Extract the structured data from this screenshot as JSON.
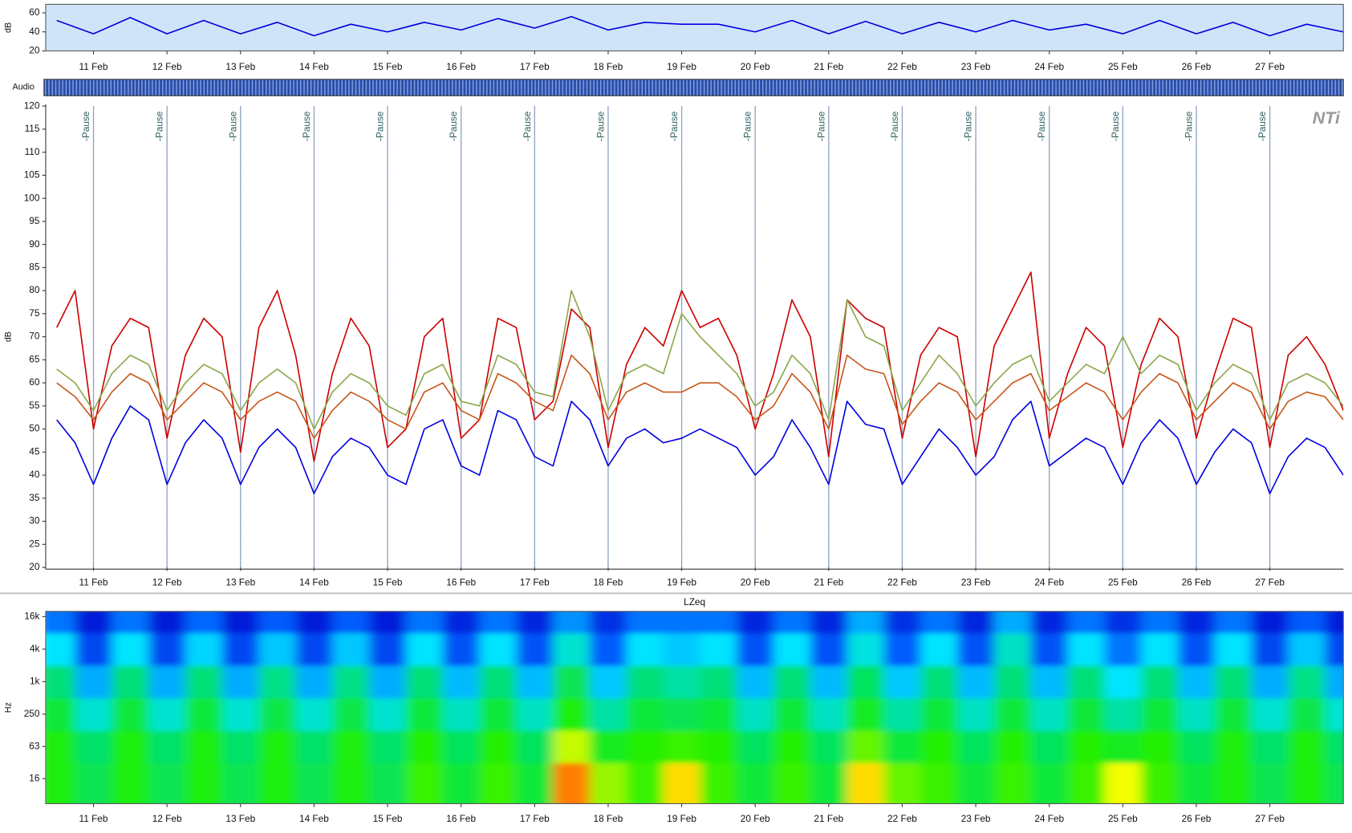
{
  "audio_track": {
    "label": "Audio"
  },
  "chart_data": [
    {
      "type": "line",
      "ylabel": "dB",
      "x": [
        10.5,
        11,
        11.5,
        12,
        12.5,
        13,
        13.5,
        14,
        14.5,
        15,
        15.5,
        16,
        16.5,
        17,
        17.5,
        18,
        18.5,
        19,
        19.5,
        20,
        20.5,
        21,
        21.5,
        22,
        22.5,
        23,
        23.5,
        24,
        24.5,
        25,
        25.5,
        26,
        26.5,
        27,
        27.5,
        28
      ],
      "series": [
        {
          "color": "#0000dd",
          "values": [
            52,
            38,
            55,
            38,
            52,
            38,
            50,
            36,
            48,
            40,
            50,
            42,
            54,
            44,
            56,
            42,
            50,
            48,
            48,
            40,
            52,
            38,
            51,
            38,
            50,
            40,
            52,
            42,
            48,
            38,
            52,
            38,
            50,
            36,
            48,
            40
          ]
        }
      ],
      "xlim": [
        10.35,
        28.0
      ],
      "ylim": [
        20,
        69
      ],
      "yticks": [
        20,
        40,
        60
      ],
      "xticks": [
        {
          "value": 11,
          "label": "11 Feb"
        },
        {
          "value": 12,
          "label": "12 Feb"
        },
        {
          "value": 13,
          "label": "13 Feb"
        },
        {
          "value": 14,
          "label": "14 Feb"
        },
        {
          "value": 15,
          "label": "15 Feb"
        },
        {
          "value": 16,
          "label": "16 Feb"
        },
        {
          "value": 17,
          "label": "17 Feb"
        },
        {
          "value": 18,
          "label": "18 Feb"
        },
        {
          "value": 19,
          "label": "19 Feb"
        },
        {
          "value": 20,
          "label": "20 Feb"
        },
        {
          "value": 21,
          "label": "21 Feb"
        },
        {
          "value": 22,
          "label": "22 Feb"
        },
        {
          "value": 23,
          "label": "23 Feb"
        },
        {
          "value": 24,
          "label": "24 Feb"
        },
        {
          "value": 25,
          "label": "25 Feb"
        },
        {
          "value": 26,
          "label": "26 Feb"
        },
        {
          "value": 27,
          "label": "27 Feb"
        }
      ],
      "background": "#cfe4f8"
    },
    {
      "type": "line",
      "ylabel": "dB",
      "logo": "NTi",
      "grid": true,
      "x": [
        10.5,
        10.75,
        11,
        11.25,
        11.5,
        11.75,
        12,
        12.25,
        12.5,
        12.75,
        13,
        13.25,
        13.5,
        13.75,
        14,
        14.25,
        14.5,
        14.75,
        15,
        15.25,
        15.5,
        15.75,
        16,
        16.25,
        16.5,
        16.75,
        17,
        17.25,
        17.5,
        17.75,
        18,
        18.25,
        18.5,
        18.75,
        19,
        19.25,
        19.5,
        19.75,
        20,
        20.25,
        20.5,
        20.75,
        21,
        21.25,
        21.5,
        21.75,
        22,
        22.25,
        22.5,
        22.75,
        23,
        23.25,
        23.5,
        23.75,
        24,
        24.25,
        24.5,
        24.75,
        25,
        25.25,
        25.5,
        25.75,
        26,
        26.25,
        26.5,
        26.75,
        27,
        27.25,
        27.5,
        27.75,
        28
      ],
      "series": [
        {
          "color": "#cc0000",
          "values": [
            72,
            80,
            50,
            68,
            74,
            72,
            48,
            66,
            74,
            70,
            45,
            72,
            80,
            66,
            43,
            62,
            74,
            68,
            46,
            50,
            70,
            74,
            48,
            52,
            74,
            72,
            52,
            56,
            76,
            72,
            46,
            64,
            72,
            68,
            80,
            72,
            74,
            66,
            50,
            62,
            78,
            70,
            44,
            78,
            74,
            72,
            48,
            66,
            72,
            70,
            44,
            68,
            76,
            84,
            48,
            62,
            72,
            68,
            46,
            64,
            74,
            70,
            48,
            62,
            74,
            72,
            46,
            66,
            70,
            64,
            54
          ]
        },
        {
          "color": "#8aa84a",
          "values": [
            63,
            60,
            54,
            62,
            66,
            64,
            54,
            60,
            64,
            62,
            54,
            60,
            63,
            60,
            50,
            58,
            62,
            60,
            55,
            53,
            62,
            64,
            56,
            55,
            66,
            64,
            58,
            57,
            80,
            70,
            54,
            62,
            64,
            62,
            75,
            70,
            66,
            62,
            55,
            58,
            66,
            62,
            52,
            78,
            70,
            68,
            54,
            60,
            66,
            62,
            55,
            60,
            64,
            66,
            56,
            60,
            64,
            62,
            70,
            62,
            66,
            64,
            54,
            60,
            64,
            62,
            52,
            60,
            62,
            60,
            55
          ]
        },
        {
          "color": "#c8561a",
          "values": [
            60,
            57,
            52,
            58,
            62,
            60,
            52,
            56,
            60,
            58,
            52,
            56,
            58,
            56,
            48,
            54,
            58,
            56,
            52,
            50,
            58,
            60,
            54,
            52,
            62,
            60,
            56,
            54,
            66,
            62,
            52,
            58,
            60,
            58,
            58,
            60,
            60,
            57,
            52,
            55,
            62,
            58,
            50,
            66,
            63,
            62,
            51,
            56,
            60,
            58,
            52,
            56,
            60,
            62,
            54,
            57,
            60,
            58,
            52,
            58,
            62,
            60,
            52,
            56,
            60,
            58,
            50,
            56,
            58,
            57,
            52
          ]
        },
        {
          "color": "#0000e0",
          "values": [
            52,
            47,
            38,
            48,
            55,
            52,
            38,
            47,
            52,
            48,
            38,
            46,
            50,
            46,
            36,
            44,
            48,
            46,
            40,
            38,
            50,
            52,
            42,
            40,
            54,
            52,
            44,
            42,
            56,
            52,
            42,
            48,
            50,
            47,
            48,
            50,
            48,
            46,
            40,
            44,
            52,
            46,
            38,
            56,
            51,
            50,
            38,
            44,
            50,
            46,
            40,
            44,
            52,
            56,
            42,
            45,
            48,
            46,
            38,
            47,
            52,
            48,
            38,
            45,
            50,
            47,
            36,
            44,
            48,
            46,
            40
          ]
        }
      ],
      "xlim": [
        10.35,
        28.0
      ],
      "ylim": [
        20,
        120
      ],
      "yticks": [
        20,
        25,
        30,
        35,
        40,
        45,
        50,
        55,
        60,
        65,
        70,
        75,
        80,
        85,
        90,
        95,
        100,
        105,
        110,
        115,
        120
      ],
      "xticks": [
        {
          "value": 11,
          "label": "11 Feb"
        },
        {
          "value": 12,
          "label": "12 Feb"
        },
        {
          "value": 13,
          "label": "13 Feb"
        },
        {
          "value": 14,
          "label": "14 Feb"
        },
        {
          "value": 15,
          "label": "15 Feb"
        },
        {
          "value": 16,
          "label": "16 Feb"
        },
        {
          "value": 17,
          "label": "17 Feb"
        },
        {
          "value": 18,
          "label": "18 Feb"
        },
        {
          "value": 19,
          "label": "19 Feb"
        },
        {
          "value": 20,
          "label": "20 Feb"
        },
        {
          "value": 21,
          "label": "21 Feb"
        },
        {
          "value": 22,
          "label": "22 Feb"
        },
        {
          "value": 23,
          "label": "23 Feb"
        },
        {
          "value": 24,
          "label": "24 Feb"
        },
        {
          "value": 25,
          "label": "25 Feb"
        },
        {
          "value": 26,
          "label": "26 Feb"
        },
        {
          "value": 27,
          "label": "27 Feb"
        }
      ],
      "annotations": [
        {
          "x": 11,
          "label": "-Pause"
        },
        {
          "x": 12,
          "label": "-Pause"
        },
        {
          "x": 13,
          "label": "-Pause"
        },
        {
          "x": 14,
          "label": "-Pause"
        },
        {
          "x": 15,
          "label": "-Pause"
        },
        {
          "x": 16,
          "label": "-Pause"
        },
        {
          "x": 17,
          "label": "-Pause"
        },
        {
          "x": 18,
          "label": "-Pause"
        },
        {
          "x": 19,
          "label": "-Pause"
        },
        {
          "x": 20,
          "label": "-Pause"
        },
        {
          "x": 21,
          "label": "-Pause"
        },
        {
          "x": 22,
          "label": "-Pause"
        },
        {
          "x": 23,
          "label": "-Pause"
        },
        {
          "x": 24,
          "label": "-Pause"
        },
        {
          "x": 25,
          "label": "-Pause"
        },
        {
          "x": 26,
          "label": "-Pause"
        },
        {
          "x": 27,
          "label": "-Pause"
        }
      ]
    },
    {
      "type": "heatmap",
      "title": "LZeq",
      "ylabel": "Hz",
      "log_y": true,
      "x": [
        10.5,
        11,
        11.5,
        12,
        12.5,
        13,
        13.5,
        14,
        14.5,
        15,
        15.5,
        16,
        16.5,
        17,
        17.5,
        18,
        18.5,
        19,
        19.5,
        20,
        20.5,
        21,
        21.5,
        22,
        22.5,
        23,
        23.5,
        24,
        24.5,
        25,
        25.5,
        26,
        26.5,
        27,
        27.5,
        28
      ],
      "bands": [
        16,
        63,
        250,
        1000,
        4000,
        16000
      ],
      "values": [
        [
          42,
          36,
          42,
          36,
          42,
          36,
          42,
          36,
          42,
          36,
          44,
          38,
          44,
          38,
          58,
          48,
          44,
          54,
          44,
          38,
          44,
          38,
          54,
          46,
          44,
          38,
          44,
          38,
          44,
          52,
          44,
          38,
          42,
          36,
          42,
          36
        ],
        [
          42,
          34,
          42,
          34,
          42,
          34,
          42,
          34,
          42,
          34,
          43,
          35,
          43,
          35,
          50,
          40,
          43,
          44,
          43,
          35,
          43,
          35,
          46,
          38,
          43,
          35,
          43,
          35,
          43,
          40,
          43,
          35,
          42,
          34,
          42,
          34
        ],
        [
          38,
          27,
          38,
          27,
          38,
          27,
          37,
          27,
          37,
          27,
          38,
          28,
          38,
          28,
          42,
          30,
          38,
          36,
          38,
          28,
          38,
          28,
          40,
          30,
          38,
          28,
          38,
          28,
          38,
          30,
          38,
          28,
          38,
          27,
          37,
          27
        ],
        [
          33,
          20,
          33,
          20,
          33,
          20,
          32,
          20,
          32,
          20,
          33,
          21,
          33,
          21,
          36,
          22,
          33,
          30,
          33,
          21,
          33,
          21,
          35,
          22,
          33,
          21,
          33,
          21,
          33,
          24,
          33,
          21,
          33,
          20,
          32,
          20
        ],
        [
          24,
          12,
          24,
          12,
          23,
          12,
          22,
          12,
          22,
          12,
          24,
          13,
          24,
          13,
          27,
          14,
          24,
          22,
          24,
          13,
          24,
          13,
          26,
          14,
          24,
          13,
          28,
          13,
          24,
          16,
          24,
          13,
          24,
          12,
          22,
          12
        ],
        [
          16,
          8,
          16,
          8,
          15,
          8,
          14,
          8,
          14,
          8,
          16,
          9,
          16,
          9,
          18,
          10,
          16,
          16,
          16,
          9,
          16,
          9,
          20,
          10,
          16,
          9,
          20,
          9,
          16,
          10,
          16,
          9,
          16,
          8,
          14,
          8
        ]
      ],
      "zlim": [
        5,
        62
      ],
      "colormap": [
        "#0000c8",
        "#0060ff",
        "#00e4ff",
        "#00e070",
        "#20f000",
        "#ffff00",
        "#ff2000"
      ],
      "xlim": [
        10.35,
        28.0
      ],
      "ylim": [
        5.5,
        20000
      ],
      "yticks": [
        16,
        63,
        250,
        {
          "value": 1000,
          "label": "1k"
        },
        {
          "value": 4000,
          "label": "4k"
        },
        {
          "value": 16000,
          "label": "16k"
        }
      ],
      "xticks": [
        {
          "value": 11,
          "label": "11 Feb"
        },
        {
          "value": 12,
          "label": "12 Feb"
        },
        {
          "value": 13,
          "label": "13 Feb"
        },
        {
          "value": 14,
          "label": "14 Feb"
        },
        {
          "value": 15,
          "label": "15 Feb"
        },
        {
          "value": 16,
          "label": "16 Feb"
        },
        {
          "value": 17,
          "label": "17 Feb"
        },
        {
          "value": 18,
          "label": "18 Feb"
        },
        {
          "value": 19,
          "label": "19 Feb"
        },
        {
          "value": 20,
          "label": "20 Feb"
        },
        {
          "value": 21,
          "label": "21 Feb"
        },
        {
          "value": 22,
          "label": "22 Feb"
        },
        {
          "value": 23,
          "label": "23 Feb"
        },
        {
          "value": 24,
          "label": "24 Feb"
        },
        {
          "value": 25,
          "label": "25 Feb"
        },
        {
          "value": 26,
          "label": "26 Feb"
        },
        {
          "value": 27,
          "label": "27 Feb"
        }
      ]
    }
  ]
}
